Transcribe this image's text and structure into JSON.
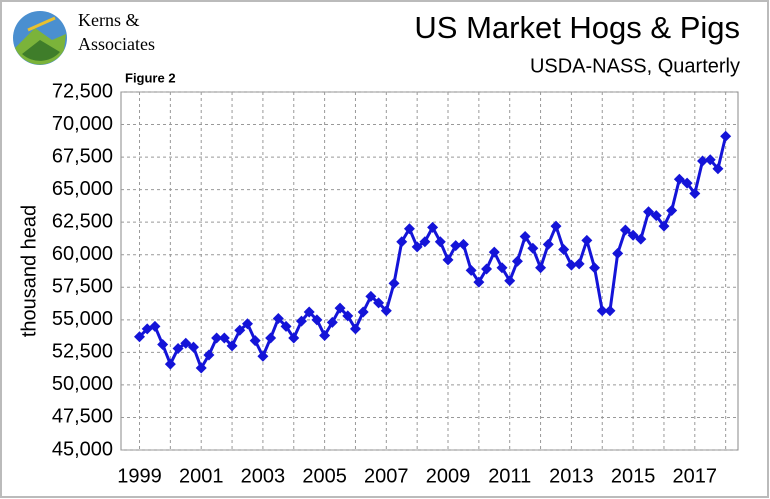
{
  "logo": [
    "Kerns &",
    "Associates"
  ],
  "chart_data": {
    "type": "line",
    "title": "US Market Hogs & Pigs",
    "subtitle": "USDA-NASS, Quarterly",
    "annotation": "Figure 2",
    "ylabel": "thousand head",
    "x": [
      1999,
      1999.25,
      1999.5,
      1999.75,
      2000,
      2000.25,
      2000.5,
      2000.75,
      2001,
      2001.25,
      2001.5,
      2001.75,
      2002,
      2002.25,
      2002.5,
      2002.75,
      2003,
      2003.25,
      2003.5,
      2003.75,
      2004,
      2004.25,
      2004.5,
      2004.75,
      2005,
      2005.25,
      2005.5,
      2005.75,
      2006,
      2006.25,
      2006.5,
      2006.75,
      2007,
      2007.25,
      2007.5,
      2007.75,
      2008,
      2008.25,
      2008.5,
      2008.75,
      2009,
      2009.25,
      2009.5,
      2009.75,
      2010,
      2010.25,
      2010.5,
      2010.75,
      2011,
      2011.25,
      2011.5,
      2011.75,
      2012,
      2012.25,
      2012.5,
      2012.75,
      2013,
      2013.25,
      2013.5,
      2013.75,
      2014,
      2014.25,
      2014.5,
      2014.75,
      2015,
      2015.25,
      2015.5,
      2015.75,
      2016,
      2016.25,
      2016.5,
      2016.75,
      2017,
      2017.25,
      2017.5,
      2017.75,
      2018
    ],
    "series": [
      {
        "name": "Market hogs",
        "color": "#1414d8",
        "values": [
          53700,
          54300,
          54500,
          53100,
          51600,
          52800,
          53200,
          52900,
          51300,
          52300,
          53600,
          53600,
          53000,
          54200,
          54700,
          53400,
          52200,
          53600,
          55100,
          54500,
          53600,
          54900,
          55600,
          55000,
          53800,
          54800,
          55900,
          55300,
          54300,
          55600,
          56800,
          56300,
          55700,
          57800,
          61000,
          62000,
          60600,
          61000,
          62100,
          61000,
          59600,
          60700,
          60800,
          58800,
          57900,
          58900,
          60200,
          59000,
          58000,
          59500,
          61400,
          60500,
          59000,
          60800,
          62200,
          60400,
          59200,
          59300,
          61100,
          59000,
          55700,
          55700,
          60100,
          61900,
          61500,
          61200,
          63300,
          63000,
          62200,
          63400,
          65800,
          65500,
          64700,
          67200,
          67300,
          66600,
          69100
        ]
      }
    ],
    "xlim": [
      1998.4,
      2018.4
    ],
    "xticks": [
      1999,
      2001,
      2003,
      2005,
      2007,
      2009,
      2011,
      2013,
      2015,
      2017
    ],
    "x_minor_ticks": [
      2000,
      2002,
      2004,
      2006,
      2008,
      2010,
      2012,
      2014,
      2016,
      2018
    ],
    "ylim": [
      45000,
      72500
    ],
    "yticks": [
      {
        "value": 45000,
        "label": "45,000"
      },
      {
        "value": 47500,
        "label": "47,500"
      },
      {
        "value": 50000,
        "label": "50,000"
      },
      {
        "value": 52500,
        "label": "52,500"
      },
      {
        "value": 55000,
        "label": "55,000"
      },
      {
        "value": 57500,
        "label": "57,500"
      },
      {
        "value": 60000,
        "label": "60,000"
      },
      {
        "value": 62500,
        "label": "62,500"
      },
      {
        "value": 65000,
        "label": "65,000"
      },
      {
        "value": 67500,
        "label": "67,500"
      },
      {
        "value": 70000,
        "label": "70,000"
      },
      {
        "value": 72500,
        "label": "72,500"
      }
    ],
    "grid": true
  }
}
